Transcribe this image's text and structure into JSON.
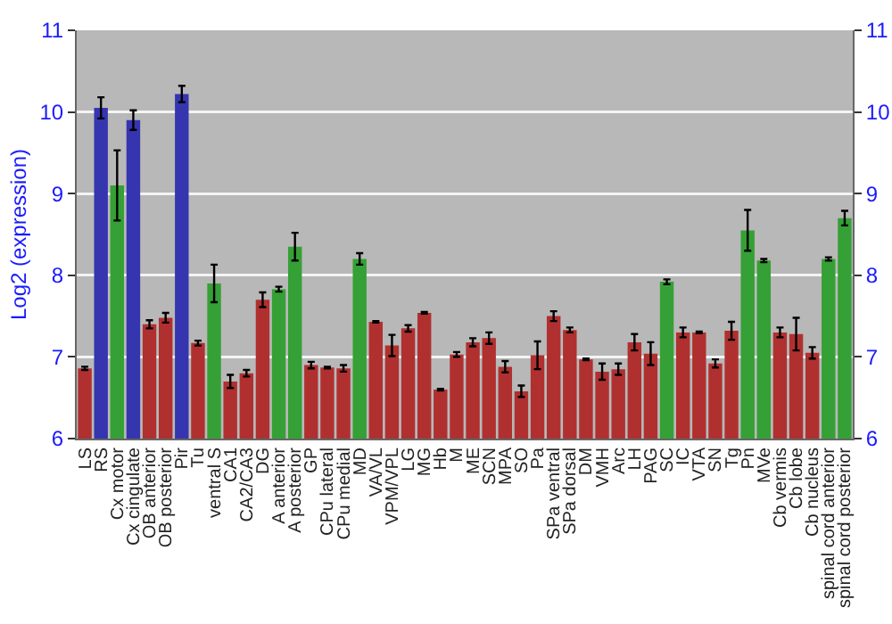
{
  "chart_data": {
    "type": "bar",
    "ylabel": "Log2 (expression)",
    "categories": [
      "LS",
      "RS",
      "Cx motor",
      "Cx cingulate",
      "OB anterior",
      "OB posterior",
      "Pir",
      "Tu",
      "ventral S",
      "CA1",
      "CA2/CA3",
      "DG",
      "A anterior",
      "A posterior",
      "GP",
      "CPu lateral",
      "CPu medial",
      "MD",
      "VA/VL",
      "VPM/VPL",
      "LG",
      "MG",
      "Hb",
      "M",
      "ME",
      "SCN",
      "MPA",
      "SO",
      "Pa",
      "SPa ventral",
      "SPa dorsal",
      "DM",
      "VMH",
      "Arc",
      "LH",
      "PAG",
      "SC",
      "IC",
      "VTA",
      "SN",
      "Tg",
      "Pn",
      "MVe",
      "Cb vermis",
      "Cb lobe",
      "Cb nucleus",
      "spinal cord anterior",
      "spinal cord posterior"
    ],
    "values": [
      6.86,
      10.05,
      9.1,
      9.9,
      7.4,
      7.48,
      10.22,
      7.17,
      7.9,
      6.7,
      6.8,
      7.7,
      7.83,
      8.35,
      6.9,
      6.87,
      6.86,
      8.2,
      7.43,
      7.14,
      7.35,
      7.54,
      6.6,
      7.03,
      7.18,
      7.23,
      6.88,
      6.58,
      7.02,
      7.5,
      7.33,
      6.97,
      6.82,
      6.85,
      7.18,
      7.04,
      7.92,
      7.3,
      7.3,
      6.92,
      7.32,
      8.55,
      8.18,
      7.3,
      7.28,
      7.05,
      8.2,
      8.7
    ],
    "errors": [
      0.02,
      0.13,
      0.43,
      0.12,
      0.05,
      0.06,
      0.1,
      0.03,
      0.23,
      0.08,
      0.04,
      0.09,
      0.03,
      0.17,
      0.04,
      0.01,
      0.04,
      0.07,
      0.01,
      0.13,
      0.04,
      0.01,
      0.01,
      0.03,
      0.05,
      0.07,
      0.07,
      0.07,
      0.17,
      0.06,
      0.03,
      0.01,
      0.1,
      0.07,
      0.1,
      0.14,
      0.03,
      0.06,
      0.01,
      0.05,
      0.11,
      0.25,
      0.02,
      0.06,
      0.2,
      0.07,
      0.02,
      0.09
    ],
    "colors": [
      "#b03030",
      "#3535b0",
      "#35a035",
      "#3535b0",
      "#b03030",
      "#b03030",
      "#3535b0",
      "#b03030",
      "#35a035",
      "#b03030",
      "#b03030",
      "#b03030",
      "#35a035",
      "#35a035",
      "#b03030",
      "#b03030",
      "#b03030",
      "#35a035",
      "#b03030",
      "#b03030",
      "#b03030",
      "#b03030",
      "#b03030",
      "#b03030",
      "#b03030",
      "#b03030",
      "#b03030",
      "#b03030",
      "#b03030",
      "#b03030",
      "#b03030",
      "#b03030",
      "#b03030",
      "#b03030",
      "#b03030",
      "#b03030",
      "#35a035",
      "#b03030",
      "#b03030",
      "#b03030",
      "#b03030",
      "#35a035",
      "#35a035",
      "#b03030",
      "#b03030",
      "#b03030",
      "#35a035",
      "#35a035"
    ],
    "ylim": [
      6,
      11
    ],
    "yticks": [
      6,
      7,
      8,
      9,
      10,
      11
    ],
    "y2lim": [
      6,
      11
    ],
    "y2ticks": [
      6,
      7,
      8,
      9,
      10,
      11
    ],
    "grid": "y"
  }
}
